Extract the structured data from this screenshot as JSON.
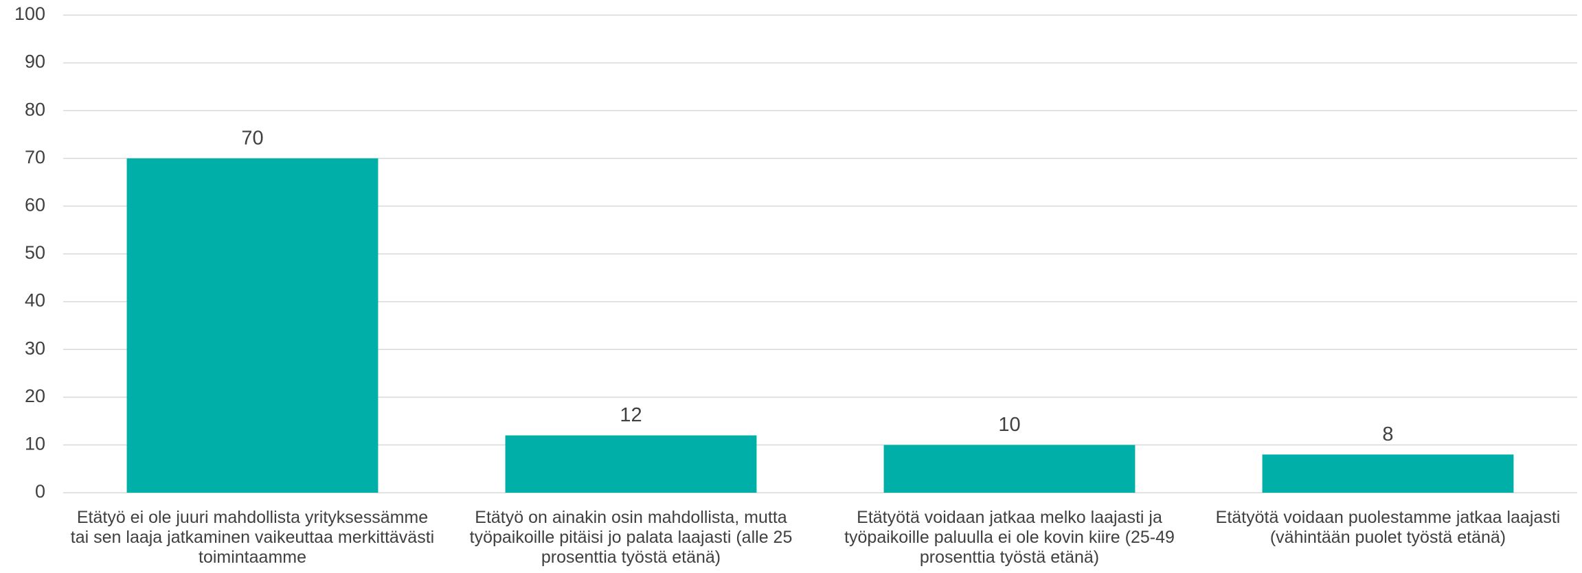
{
  "chart_data": {
    "type": "bar",
    "categories": [
      "Etätyö ei ole juuri mahdollista yrityksessämme tai sen laaja jatkaminen vaikeuttaa merkittävästi toimintaamme",
      "Etätyö on ainakin osin mahdollista, mutta työpaikoille pitäisi jo palata laajasti (alle 25 prosenttia työstä etänä)",
      "Etätyötä voidaan jatkaa melko laajasti ja työpaikoille paluulla ei ole kovin kiire (25-49 prosenttia työstä etänä)",
      "Etätyötä voidaan puolestamme jatkaa laajasti (vähintään puolet työstä etänä)"
    ],
    "values": [
      70,
      12,
      10,
      8
    ],
    "color": "#00b0a8",
    "ylim": [
      0,
      100
    ],
    "yticks": [
      0,
      10,
      20,
      30,
      40,
      50,
      60,
      70,
      80,
      90,
      100
    ],
    "grid": true
  }
}
